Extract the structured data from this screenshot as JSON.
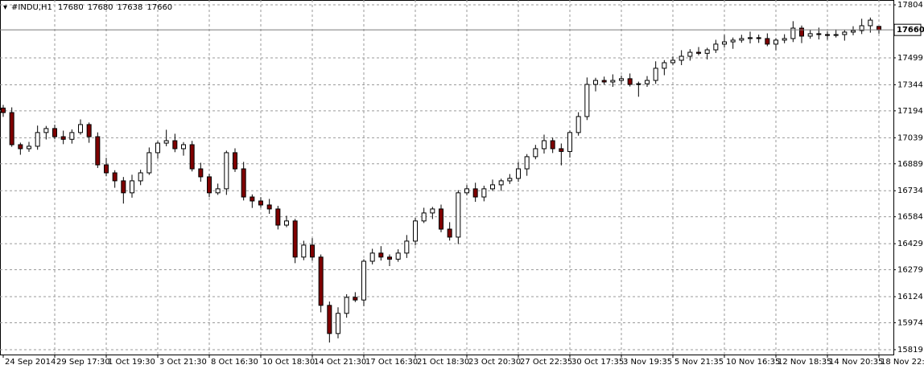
{
  "chart_data": {
    "type": "candlestick",
    "symbol": "#INDU,H1",
    "categories": [
      "24 Sep 2014",
      null,
      null,
      null,
      null,
      null,
      "29 Sep 17:30",
      null,
      null,
      null,
      null,
      null,
      "1 Oct 19:30",
      null,
      null,
      null,
      null,
      null,
      "3 Oct 21:30",
      null,
      null,
      null,
      null,
      null,
      "8 Oct 16:30",
      null,
      null,
      null,
      null,
      null,
      "10 Oct 18:30",
      null,
      null,
      null,
      null,
      null,
      "14 Oct 21:30",
      null,
      null,
      null,
      null,
      null,
      "17 Oct 16:30",
      null,
      null,
      null,
      null,
      null,
      "21 Oct 18:30",
      null,
      null,
      null,
      null,
      null,
      "23 Oct 20:30",
      null,
      null,
      null,
      null,
      null,
      "27 Oct 22:35",
      null,
      null,
      null,
      null,
      null,
      "30 Oct 17:35",
      null,
      null,
      null,
      null,
      null,
      "3 Nov 19:35",
      null,
      null,
      null,
      null,
      null,
      "5 Nov 21:35",
      null,
      null,
      null,
      null,
      null,
      "10 Nov 16:35",
      null,
      null,
      null,
      null,
      null,
      "12 Nov 18:35",
      null,
      null,
      null,
      null,
      null,
      "14 Nov 20:35",
      null,
      null,
      null,
      null,
      null,
      "18 Nov 22:35"
    ],
    "open": [
      17210,
      17184,
      16999,
      16976,
      16990,
      17069,
      17092,
      17045,
      17030,
      17069,
      17115,
      17045,
      16883,
      16837,
      16791,
      16722,
      16791,
      16837,
      16953,
      17008,
      17022,
      16976,
      16999,
      16860,
      16814,
      16722,
      16745,
      16953,
      16860,
      16698,
      16675,
      16652,
      16629,
      16536,
      16560,
      16352,
      16421,
      16352,
      16074,
      15912,
      16028,
      16120,
      16105,
      16328,
      16375,
      16352,
      16340,
      16375,
      16444,
      16560,
      16606,
      16629,
      16513,
      16467,
      16722,
      16745,
      16698,
      16745,
      16768,
      16791,
      16805,
      16860,
      16930,
      16976,
      17022,
      16976,
      16960,
      17069,
      17161,
      17346,
      17369,
      17360,
      17369,
      17379,
      17346,
      17350,
      17369,
      17439,
      17471,
      17485,
      17508,
      17531,
      17525,
      17545,
      17578,
      17591,
      17601,
      17610,
      17615,
      17610,
      17578,
      17601,
      17610,
      17670,
      17624,
      17638,
      17633,
      17628,
      17633,
      17647,
      17656,
      17684,
      17680
    ],
    "high": [
      17228,
      17214,
      17011,
      17015,
      17109,
      17107,
      17114,
      17080,
      17087,
      17145,
      17127,
      17070,
      16923,
      16852,
      16813,
      16826,
      16855,
      16983,
      17020,
      17085,
      17062,
      17014,
      17021,
      16895,
      16832,
      16775,
      16965,
      16978,
      16900,
      16713,
      16697,
      16687,
      16647,
      16590,
      16572,
      16446,
      16461,
      16367,
      16096,
      16063,
      16138,
      16150,
      16340,
      16400,
      16415,
      16367,
      16397,
      16479,
      16578,
      16636,
      16641,
      16654,
      16553,
      16737,
      16767,
      16780,
      16763,
      16798,
      16803,
      16830,
      16900,
      16945,
      16998,
      17057,
      17040,
      17006,
      17081,
      17186,
      17386,
      17384,
      17391,
      17404,
      17397,
      17409,
      17362,
      17394,
      17479,
      17486,
      17507,
      17543,
      17549,
      17561,
      17557,
      17603,
      17631,
      17616,
      17632,
      17650,
      17633,
      17640,
      17613,
      17635,
      17710,
      17685,
      17660,
      17673,
      17651,
      17663,
      17659,
      17681,
      17724,
      17731,
      17680
    ],
    "low": [
      17159,
      16987,
      16941,
      16958,
      16970,
      17029,
      17030,
      17002,
      17005,
      17057,
      17010,
      16865,
      16817,
      16751,
      16660,
      16694,
      16766,
      16825,
      16918,
      16990,
      16956,
      16936,
      16845,
      16786,
      16697,
      16710,
      16710,
      16842,
      16678,
      16635,
      16637,
      16601,
      16511,
      16524,
      16317,
      16334,
      16332,
      16034,
      15860,
      15884,
      16003,
      16093,
      16070,
      16310,
      16332,
      16300,
      16325,
      16347,
      16419,
      16548,
      16571,
      16495,
      16447,
      16427,
      16707,
      16670,
      16673,
      16733,
      16733,
      16773,
      16785,
      16820,
      16915,
      16948,
      16951,
      16880,
      16925,
      17051,
      17141,
      17306,
      17345,
      17332,
      17344,
      17334,
      17275,
      17332,
      17349,
      17399,
      17456,
      17457,
      17483,
      17513,
      17490,
      17527,
      17558,
      17551,
      17586,
      17582,
      17585,
      17566,
      17543,
      17583,
      17590,
      17584,
      17609,
      17605,
      17603,
      17616,
      17598,
      17629,
      17636,
      17644,
      17638
    ],
    "close": [
      17184,
      16999,
      16976,
      16990,
      17069,
      17092,
      17045,
      17030,
      17069,
      17115,
      17045,
      16883,
      16837,
      16791,
      16722,
      16791,
      16837,
      16953,
      17008,
      17022,
      16976,
      16999,
      16860,
      16814,
      16722,
      16745,
      16953,
      16860,
      16698,
      16675,
      16652,
      16629,
      16536,
      16560,
      16352,
      16421,
      16352,
      16074,
      15912,
      16028,
      16120,
      16105,
      16328,
      16375,
      16352,
      16340,
      16375,
      16444,
      16560,
      16606,
      16629,
      16513,
      16467,
      16722,
      16745,
      16698,
      16745,
      16768,
      16791,
      16805,
      16860,
      16930,
      16976,
      17022,
      16976,
      16960,
      17069,
      17161,
      17346,
      17369,
      17360,
      17369,
      17379,
      17346,
      17350,
      17369,
      17439,
      17471,
      17485,
      17508,
      17531,
      17525,
      17545,
      17578,
      17591,
      17601,
      17610,
      17615,
      17610,
      17578,
      17601,
      17610,
      17670,
      17624,
      17638,
      17633,
      17628,
      17633,
      17647,
      17656,
      17684,
      17716,
      17660
    ],
    "ylim": [
      15791,
      17832
    ],
    "yticks": [
      17804,
      17499,
      17344,
      17194,
      17039,
      16889,
      16734,
      16584,
      16429,
      16279,
      16124,
      15974,
      15819
    ],
    "grid": true,
    "bull_color": "#ffffff",
    "bear_color": "#7f0000",
    "wick_color": "#000000"
  }
}
